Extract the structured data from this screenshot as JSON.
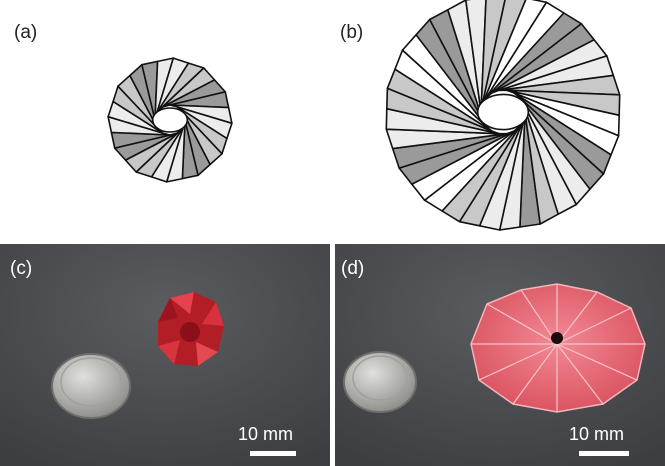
{
  "panels": {
    "a": {
      "label": "(a)"
    },
    "b": {
      "label": "(b)"
    },
    "c": {
      "label": "(c)",
      "scalebar": "10 mm"
    },
    "d": {
      "label": "(d)",
      "scalebar": "10 mm"
    }
  },
  "colors": {
    "fold_dark": "#9a9a9a",
    "fold_mid": "#c8c8c8",
    "fold_light": "#ececec",
    "photo_bg": "#4a4c50",
    "origami_red": "#c0202a",
    "origami_pink": "#e0606e",
    "coin": "#b8b8b4"
  }
}
